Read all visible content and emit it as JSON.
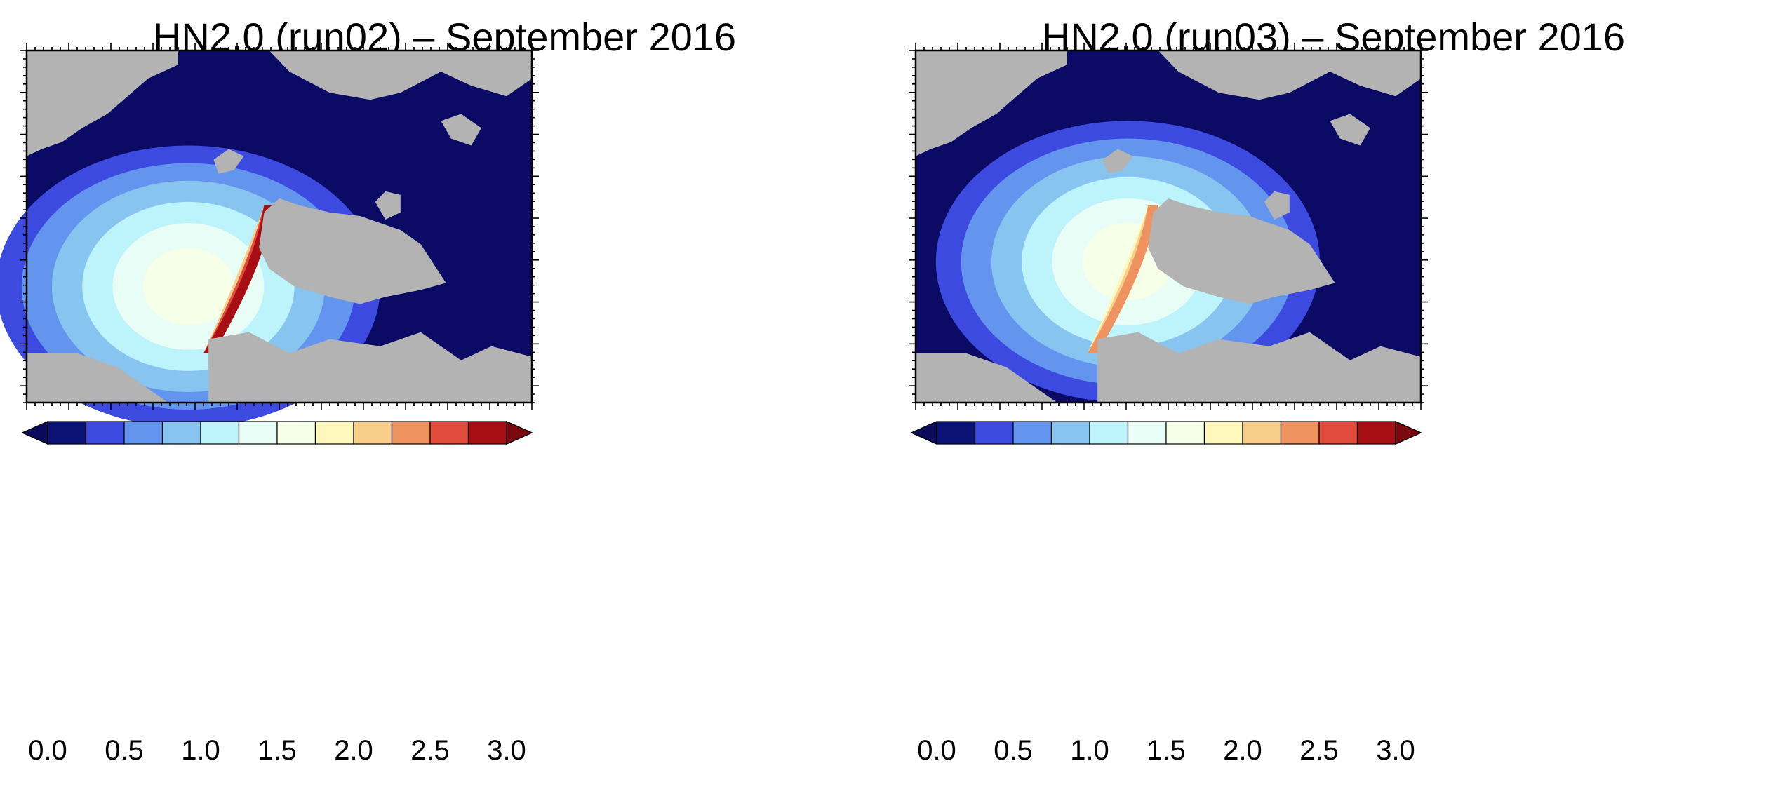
{
  "panels": [
    {
      "title": "HN2.0 (run02) – September 2016",
      "field": {
        "ice_center": [
          0.32,
          0.67
        ],
        "ridge_intensity": 3.0,
        "front_x": 0.47
      }
    },
    {
      "title": "HN2.0 (run03) – September 2016",
      "field": {
        "ice_center": [
          0.42,
          0.6
        ],
        "ridge_intensity": 2.2,
        "front_x": 0.46
      }
    }
  ],
  "colorbar": {
    "levels": [
      0.0,
      0.25,
      0.5,
      0.75,
      1.0,
      1.25,
      1.5,
      1.75,
      2.0,
      2.25,
      2.5,
      2.75,
      3.0
    ],
    "colors": [
      "#0b1377",
      "#3c4ae0",
      "#6495ee",
      "#87c5f0",
      "#bdf3fb",
      "#e8fdf6",
      "#f6ffe8",
      "#fff8bc",
      "#f7cf8a",
      "#ee935f",
      "#e14c3c",
      "#a70f15"
    ],
    "under_color": "#0a0a5a",
    "over_color": "#7a0a10",
    "tick_labels": [
      "0.0",
      "0.5",
      "1.0",
      "1.5",
      "2.0",
      "2.5",
      "3.0"
    ],
    "tick_values": [
      0.0,
      0.5,
      1.0,
      1.5,
      2.0,
      2.5,
      3.0
    ]
  },
  "style": {
    "ocean_color": "#0b0b66",
    "land_color": "#b3b3b3"
  }
}
